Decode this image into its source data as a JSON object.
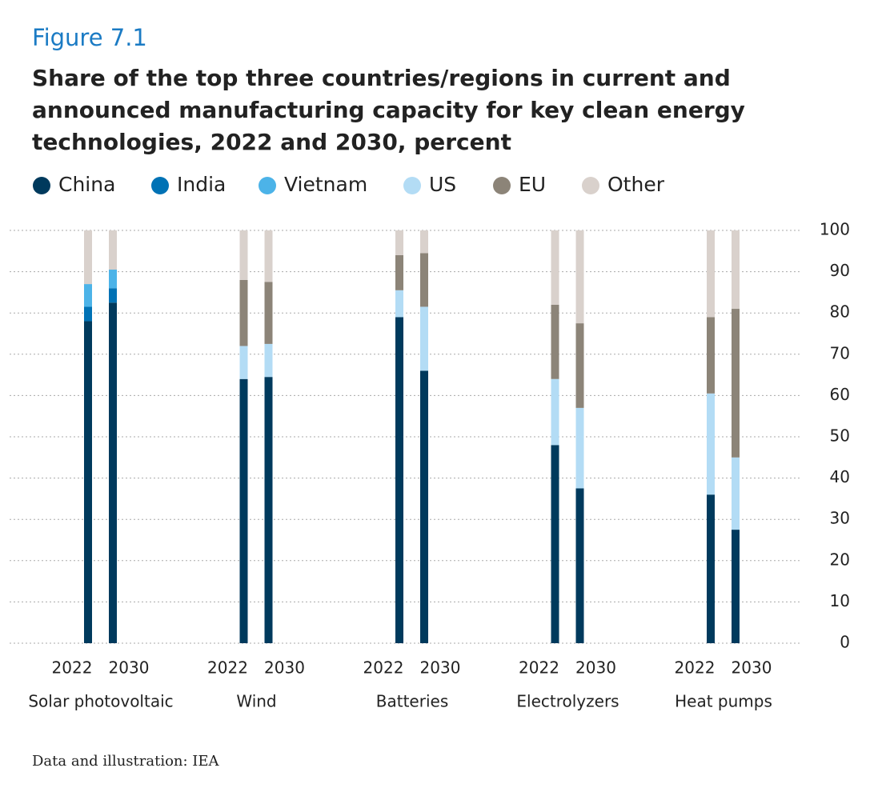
{
  "chart_data": {
    "type": "bar",
    "stacked": true,
    "figure_label": "Figure 7.1",
    "title": "Share of the top three countries/regions in current and announced manufacturing capacity for key clean energy technologies, 2022 and 2030, percent",
    "source": "Data and illustration: IEA",
    "categories": [
      "2022",
      "2030",
      "2022",
      "2030",
      "2022",
      "2030",
      "2022",
      "2030",
      "2022",
      "2030"
    ],
    "groups": [
      "Solar photovoltaic",
      "Wind",
      "Batteries",
      "Electrolyzers",
      "Heat pumps"
    ],
    "series": [
      {
        "name": "China",
        "color": "#003a5d",
        "values": [
          78,
          82.5,
          64,
          64.5,
          79,
          66,
          48,
          37.5,
          36,
          27.5
        ]
      },
      {
        "name": "India",
        "color": "#0072b5",
        "values": [
          3.5,
          3.5,
          0,
          0,
          0,
          0,
          0,
          0,
          0,
          0
        ]
      },
      {
        "name": "Vietnam",
        "color": "#4cb3e8",
        "values": [
          5.5,
          4.5,
          0,
          0,
          0,
          0,
          0,
          0,
          0,
          0
        ]
      },
      {
        "name": "US",
        "color": "#b3dcf5",
        "values": [
          0,
          0,
          8,
          8,
          6.5,
          15.5,
          16,
          19.5,
          24.5,
          17.5
        ]
      },
      {
        "name": "EU",
        "color": "#8c8478",
        "values": [
          0,
          0,
          16,
          15,
          8.5,
          13,
          18,
          20.5,
          18.5,
          36
        ]
      },
      {
        "name": "Other",
        "color": "#d9d1cc",
        "values": [
          13,
          9.5,
          12,
          12.5,
          6,
          5.5,
          18,
          22.5,
          21,
          19
        ]
      }
    ],
    "ylim": [
      0,
      100
    ],
    "yticks": [
      0,
      10,
      20,
      30,
      40,
      50,
      60,
      70,
      80,
      90,
      100
    ],
    "grid": true
  }
}
